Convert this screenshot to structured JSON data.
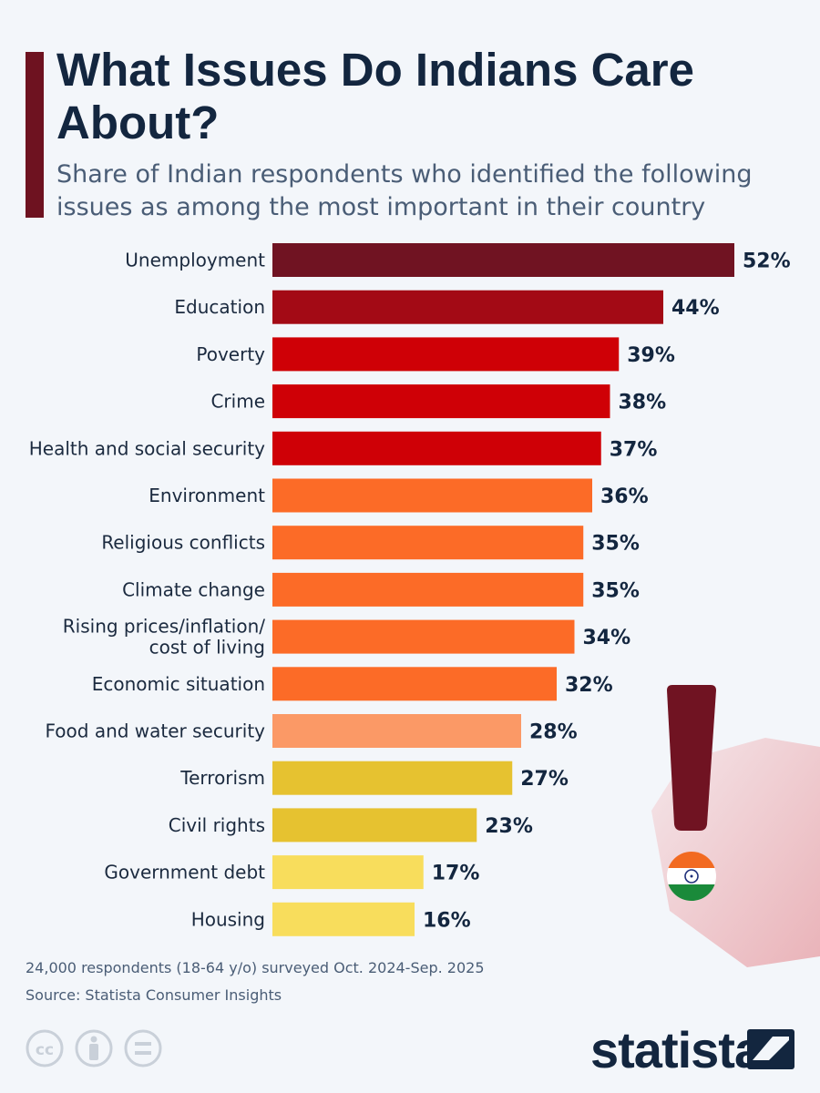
{
  "header": {
    "title": "What Issues Do Indians Care About?",
    "subtitle": "Share of Indian respondents who identified the following issues as among the most important in their country"
  },
  "chart_data": {
    "type": "bar",
    "orientation": "horizontal",
    "categories": [
      [
        "Unemployment"
      ],
      [
        "Education"
      ],
      [
        "Poverty"
      ],
      [
        "Crime"
      ],
      [
        "Health and social security"
      ],
      [
        "Environment"
      ],
      [
        "Religious conflicts"
      ],
      [
        "Climate change"
      ],
      [
        "Rising prices/inflation/",
        "cost of living"
      ],
      [
        "Economic situation"
      ],
      [
        "Food and water security"
      ],
      [
        "Terrorism"
      ],
      [
        "Civil rights"
      ],
      [
        "Government debt"
      ],
      [
        "Housing"
      ]
    ],
    "values": [
      52,
      44,
      39,
      38,
      37,
      36,
      35,
      35,
      34,
      32,
      28,
      27,
      23,
      17,
      16
    ],
    "value_labels": [
      "52%",
      "44%",
      "39%",
      "38%",
      "37%",
      "36%",
      "35%",
      "35%",
      "34%",
      "32%",
      "28%",
      "27%",
      "23%",
      "17%",
      "16%"
    ],
    "colors": [
      "#701322",
      "#a30a15",
      "#cf0006",
      "#cf0006",
      "#cf0006",
      "#fc6b27",
      "#fc6b27",
      "#fc6b27",
      "#fc6b27",
      "#fc6b27",
      "#fb9966",
      "#e6c230",
      "#e6c230",
      "#f8dd5c",
      "#f8dd5c"
    ],
    "xlim": [
      0,
      52
    ],
    "grid": false,
    "legend": "none"
  },
  "footnote": {
    "line1": "24,000 respondents (18-64 y/o) surveyed Oct. 2024-Sep. 2025",
    "line2": "Source: Statista Consumer Insights"
  },
  "brand": {
    "name": "statista"
  },
  "icons": [
    "cc-icon",
    "attribution-icon",
    "no-derivatives-icon",
    "exclamation-icon",
    "india-flag-icon",
    "statista-logo-icon"
  ]
}
